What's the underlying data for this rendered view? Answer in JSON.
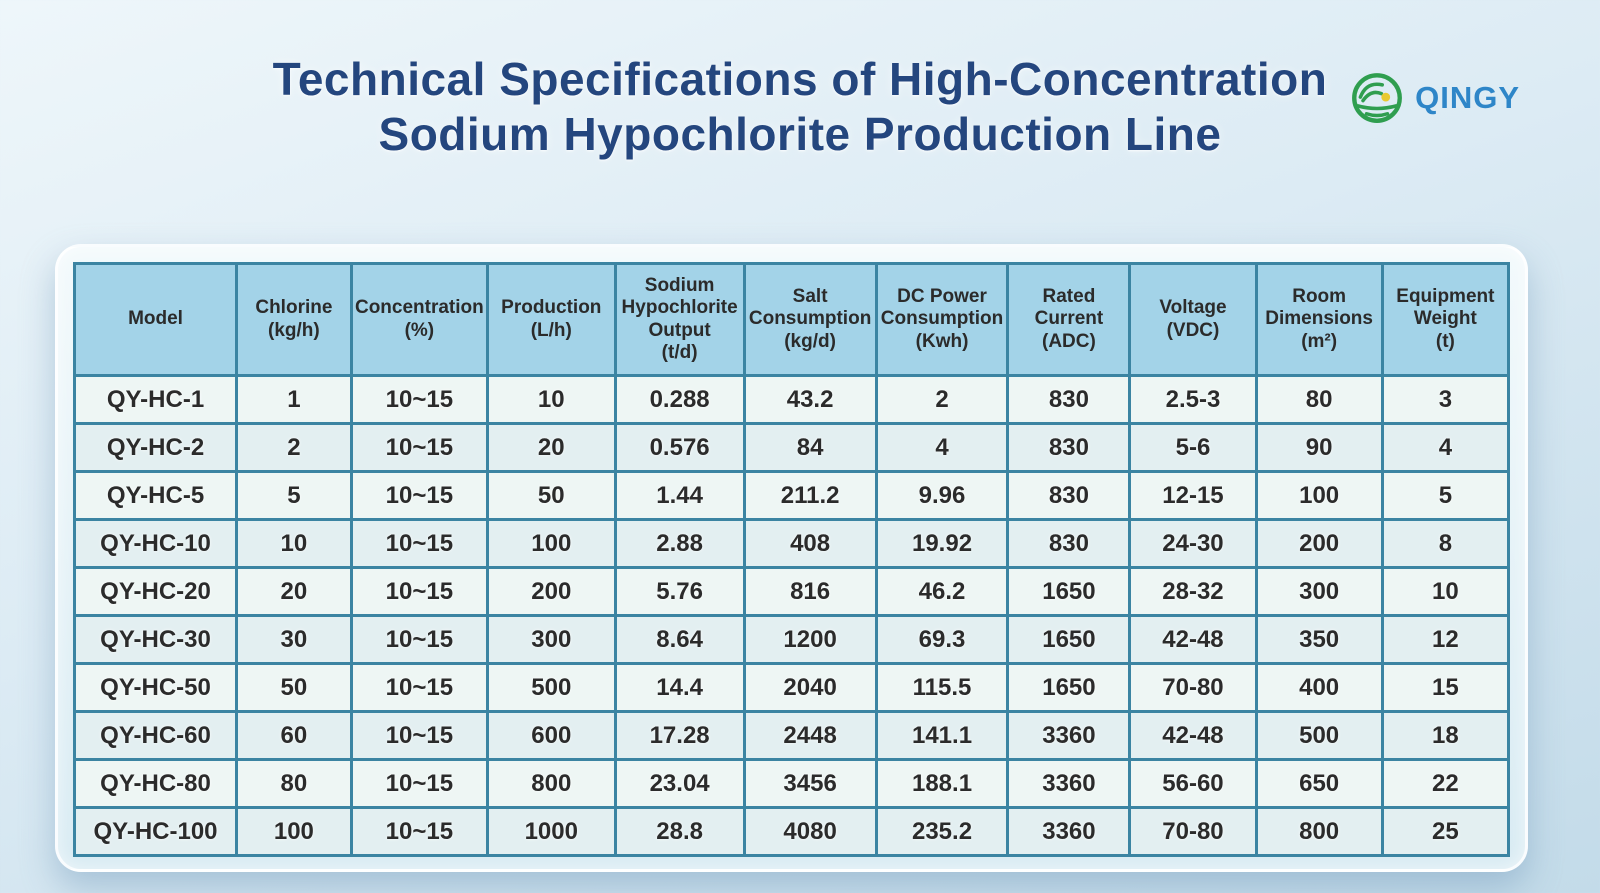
{
  "page": {
    "title_line1": "Technical Specifications of High-Concentration",
    "title_line2": "Sodium Hypochlorite Production Line"
  },
  "logo": {
    "brand": "QINGY",
    "icon": "qingy-globe-landscape-icon"
  },
  "colors": {
    "title_color": "#24467e",
    "brand_blue": "#2e86c8",
    "logo_green": "#2f9e4f",
    "logo_yellow": "#e9c930",
    "grid": "#3b84a2",
    "header_bg": "#a3d3e8",
    "row_odd": "#eef6f4",
    "row_even": "#e3eff1"
  },
  "table": {
    "columns": [
      {
        "key": "model",
        "label": "Model",
        "unit": ""
      },
      {
        "key": "chlorine",
        "label": "Chlorine",
        "unit": "(kg/h)"
      },
      {
        "key": "concentration",
        "label": "Concentration",
        "unit": "(%)"
      },
      {
        "key": "production",
        "label": "Production",
        "unit": "(L/h)"
      },
      {
        "key": "naclo-output",
        "label": "Sodium Hypochlorite Output",
        "unit": "(t/d)"
      },
      {
        "key": "salt-consumption",
        "label": "Salt Consumption",
        "unit": "(kg/d)"
      },
      {
        "key": "dc-power",
        "label": "DC Power Consumption",
        "unit": "(Kwh)"
      },
      {
        "key": "rated-current",
        "label": "Rated Current",
        "unit": "(ADC)"
      },
      {
        "key": "voltage",
        "label": "Voltage",
        "unit": "(VDC)"
      },
      {
        "key": "room-dimensions",
        "label": "Room Dimensions",
        "unit": "(m²)"
      },
      {
        "key": "equipment-weight",
        "label": "Equipment Weight",
        "unit": "(t)"
      }
    ],
    "rows": [
      {
        "model": "QY-HC-1",
        "values": [
          "1",
          "10~15",
          "10",
          "0.288",
          "43.2",
          "2",
          "830",
          "2.5-3",
          "80",
          "3"
        ]
      },
      {
        "model": "QY-HC-2",
        "values": [
          "2",
          "10~15",
          "20",
          "0.576",
          "84",
          "4",
          "830",
          "5-6",
          "90",
          "4"
        ]
      },
      {
        "model": "QY-HC-5",
        "values": [
          "5",
          "10~15",
          "50",
          "1.44",
          "211.2",
          "9.96",
          "830",
          "12-15",
          "100",
          "5"
        ]
      },
      {
        "model": "QY-HC-10",
        "values": [
          "10",
          "10~15",
          "100",
          "2.88",
          "408",
          "19.92",
          "830",
          "24-30",
          "200",
          "8"
        ]
      },
      {
        "model": "QY-HC-20",
        "values": [
          "20",
          "10~15",
          "200",
          "5.76",
          "816",
          "46.2",
          "1650",
          "28-32",
          "300",
          "10"
        ]
      },
      {
        "model": "QY-HC-30",
        "values": [
          "30",
          "10~15",
          "300",
          "8.64",
          "1200",
          "69.3",
          "1650",
          "42-48",
          "350",
          "12"
        ]
      },
      {
        "model": "QY-HC-50",
        "values": [
          "50",
          "10~15",
          "500",
          "14.4",
          "2040",
          "115.5",
          "1650",
          "70-80",
          "400",
          "15"
        ]
      },
      {
        "model": "QY-HC-60",
        "values": [
          "60",
          "10~15",
          "600",
          "17.28",
          "2448",
          "141.1",
          "3360",
          "42-48",
          "500",
          "18"
        ]
      },
      {
        "model": "QY-HC-80",
        "values": [
          "80",
          "10~15",
          "800",
          "23.04",
          "3456",
          "188.1",
          "3360",
          "56-60",
          "650",
          "22"
        ]
      },
      {
        "model": "QY-HC-100",
        "values": [
          "100",
          "10~15",
          "1000",
          "28.8",
          "4080",
          "235.2",
          "3360",
          "70-80",
          "800",
          "25"
        ]
      }
    ]
  }
}
